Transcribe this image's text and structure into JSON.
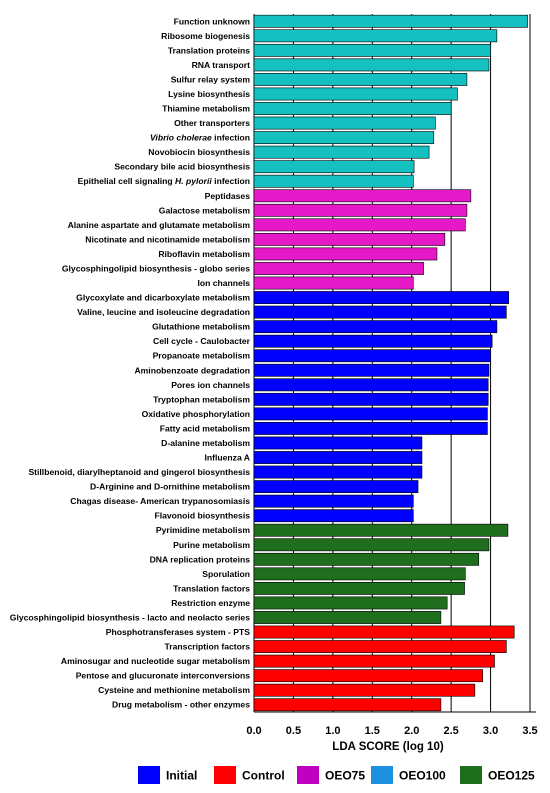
{
  "chart_data": {
    "type": "bar",
    "orientation": "horizontal",
    "xlabel": "LDA  SCORE (log 10)",
    "xlim": [
      0,
      3.6
    ],
    "xticks": [
      "0.0",
      "0.5",
      "1.0",
      "1.5",
      "2.0",
      "2.5",
      "3.0",
      "3.5"
    ],
    "xtick_values": [
      0,
      0.5,
      1.0,
      1.5,
      2.0,
      2.5,
      3.0,
      3.5
    ],
    "grid": "vertical",
    "legend_position": "bottom",
    "legend": [
      {
        "name": "Initial",
        "color": "#0000ff"
      },
      {
        "name": "Control",
        "color": "#ff0000"
      },
      {
        "name": "OEO75",
        "color": "#c000c0"
      },
      {
        "name": "OEO100",
        "color": "#1e90e0"
      },
      {
        "name": "OEO125",
        "color": "#1e6e1e"
      }
    ],
    "groups": [
      {
        "color": "#14c0c0",
        "items": [
          {
            "label": [
              "Function unknown"
            ],
            "value": 3.47
          },
          {
            "label": [
              "Ribosome biogenesis"
            ],
            "value": 3.08
          },
          {
            "label": [
              "Translation proteins"
            ],
            "value": 3.0
          },
          {
            "label": [
              "RNA transport"
            ],
            "value": 2.98
          },
          {
            "label": [
              "Sulfur relay system"
            ],
            "value": 2.7
          },
          {
            "label": [
              "Lysine biosynthesis"
            ],
            "value": 2.58
          },
          {
            "label": [
              "Thiamine metabolism"
            ],
            "value": 2.5
          },
          {
            "label": [
              "Other transporters"
            ],
            "value": 2.3
          },
          {
            "label": [
              "Vibrio cholerae",
              " infection"
            ],
            "value": 2.28
          },
          {
            "label": [
              "Novobiocin biosynthesis"
            ],
            "value": 2.22
          },
          {
            "label": [
              "Secondary bile acid biosynthesis"
            ],
            "value": 2.03
          },
          {
            "label": [
              "Epithelial cell signaling ",
              "H. pylorii",
              " infection"
            ],
            "value": 2.02
          }
        ]
      },
      {
        "color": "#e619c8",
        "items": [
          {
            "label": [
              "Peptidases"
            ],
            "value": 2.75
          },
          {
            "label": [
              "Galactose metabolism"
            ],
            "value": 2.7
          },
          {
            "label": [
              "Alanine aspartate and glutamate metabolism"
            ],
            "value": 2.68
          },
          {
            "label": [
              "Nicotinate and nicotinamide metabolism"
            ],
            "value": 2.42
          },
          {
            "label": [
              "Riboflavin metabolism"
            ],
            "value": 2.32
          },
          {
            "label": [
              "Glycosphingolipid biosynthesis - globo series"
            ],
            "value": 2.15
          },
          {
            "label": [
              "Ion channels"
            ],
            "value": 2.02
          }
        ]
      },
      {
        "color": "#0000ff",
        "items": [
          {
            "label": [
              "Glycoxylate and dicarboxylate metabolism"
            ],
            "value": 3.23
          },
          {
            "label": [
              "Valine, leucine and isoleucine degradation"
            ],
            "value": 3.2
          },
          {
            "label": [
              "Glutathione metabolism"
            ],
            "value": 3.08
          },
          {
            "label": [
              "Cell cycle - Caulobacter"
            ],
            "value": 3.02
          },
          {
            "label": [
              "Propanoate metabolism"
            ],
            "value": 3.0
          },
          {
            "label": [
              "Aminobenzoate degradation"
            ],
            "value": 2.98
          },
          {
            "label": [
              "Pores ion channels"
            ],
            "value": 2.97
          },
          {
            "label": [
              "Tryptophan metabolism"
            ],
            "value": 2.97
          },
          {
            "label": [
              "Oxidative phosphorylation"
            ],
            "value": 2.96
          },
          {
            "label": [
              "Fatty acid metabolism"
            ],
            "value": 2.96
          },
          {
            "label": [
              "D-alanine metabolism"
            ],
            "value": 2.13
          },
          {
            "label": [
              "Influenza A"
            ],
            "value": 2.13
          },
          {
            "label": [
              "Stillbenoid, diarylheptanoid and gingerol biosynthesis"
            ],
            "value": 2.13
          },
          {
            "label": [
              "D-Arginine and D-ornithine metabolism"
            ],
            "value": 2.08
          },
          {
            "label": [
              "Chagas disease- American trypanosomiasis"
            ],
            "value": 2.02
          },
          {
            "label": [
              "Flavonoid biosynthesis"
            ],
            "value": 2.02
          }
        ]
      },
      {
        "color": "#1e6e1e",
        "items": [
          {
            "label": [
              "Pyrimidine metabolism"
            ],
            "value": 3.22
          },
          {
            "label": [
              "Purine metabolism"
            ],
            "value": 2.98
          },
          {
            "label": [
              "DNA replication proteins"
            ],
            "value": 2.85
          },
          {
            "label": [
              "Sporulation"
            ],
            "value": 2.68
          },
          {
            "label": [
              "Translation factors"
            ],
            "value": 2.67
          },
          {
            "label": [
              "Restriction enzyme"
            ],
            "value": 2.45
          },
          {
            "label": [
              "Glycosphingolipid biosynthesis - lacto and neolacto series"
            ],
            "value": 2.37
          }
        ]
      },
      {
        "color": "#ff0000",
        "items": [
          {
            "label": [
              "Phosphotransferases system - PTS"
            ],
            "value": 3.3
          },
          {
            "label": [
              "Transcription factors"
            ],
            "value": 3.2
          },
          {
            "label": [
              "Aminosugar and nucleotide sugar metabolism"
            ],
            "value": 3.05
          },
          {
            "label": [
              "Pentose and glucuronate interconversions"
            ],
            "value": 2.9
          },
          {
            "label": [
              "Cysteine and methionine metabolism"
            ],
            "value": 2.8
          },
          {
            "label": [
              "Drug metabolism - other enzymes"
            ],
            "value": 2.37
          }
        ]
      }
    ]
  }
}
